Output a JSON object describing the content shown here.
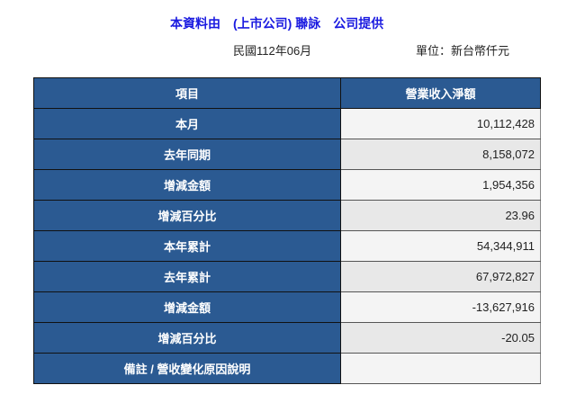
{
  "header": {
    "title": "本資料由　(上市公司) 聯詠　公司提供",
    "period": "民國112年06月",
    "unit": "單位：新台幣仟元"
  },
  "table": {
    "columns": [
      "項目",
      "營業收入淨額"
    ],
    "rows": [
      {
        "label": "本月",
        "value": "10,112,428"
      },
      {
        "label": "去年同期",
        "value": "8,158,072"
      },
      {
        "label": "增減金額",
        "value": "1,954,356"
      },
      {
        "label": "增減百分比",
        "value": "23.96"
      },
      {
        "label": "本年累計",
        "value": "54,344,911"
      },
      {
        "label": "去年累計",
        "value": "67,972,827"
      },
      {
        "label": "增減金額",
        "value": "-13,627,916"
      },
      {
        "label": "增減百分比",
        "value": "-20.05"
      },
      {
        "label": "備註 / 營收變化原因說明",
        "value": ""
      }
    ]
  },
  "colors": {
    "header_blue": "#2b5a92",
    "title_blue": "#1a1ae0"
  }
}
